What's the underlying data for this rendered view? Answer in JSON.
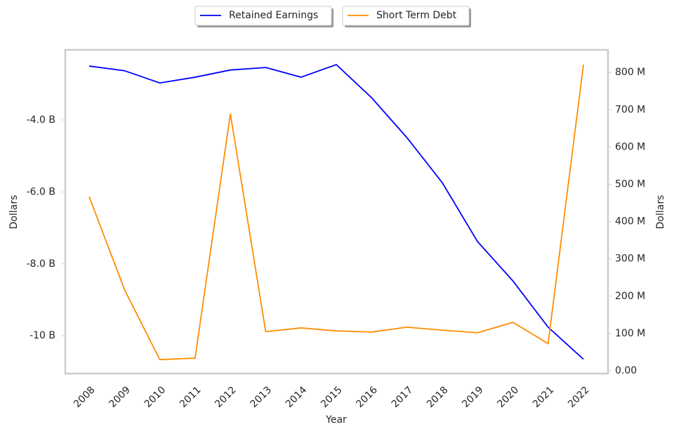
{
  "chart_data": {
    "type": "line",
    "x_label": "Year",
    "y_label": "Dollars",
    "y2_label": "Dollars",
    "categories": [
      "2008",
      "2009",
      "2010",
      "2011",
      "2012",
      "2013",
      "2014",
      "2015",
      "2016",
      "2017",
      "2018",
      "2019",
      "2020",
      "2021",
      "2022"
    ],
    "series": [
      {
        "name": "Retained Earnings",
        "color": "#0000ff",
        "values": [
          -2500000000,
          -2630000000,
          -2970000000,
          -2810000000,
          -2610000000,
          -2540000000,
          -2810000000,
          -2460000000,
          -3380000000,
          -4490000000,
          -5740000000,
          -7380000000,
          -8470000000,
          -9760000000,
          -10650000000
        ]
      },
      {
        "name": "Short Term Debt",
        "color": "#ff8c00",
        "axis": "y2",
        "values": [
          467000000,
          218000000,
          30000000,
          34000000,
          689000000,
          105000000,
          115000000,
          107000000,
          104000000,
          117000000,
          109000000,
          102000000,
          130000000,
          73000000,
          821000000
        ]
      }
    ],
    "ylim": [
      -11050000000,
      -2050000000
    ],
    "yticks": [
      {
        "value": -4000000000,
        "label": "-4.0 B"
      },
      {
        "value": -6000000000,
        "label": "-6.0 B"
      },
      {
        "value": -8000000000,
        "label": "-8.0 B"
      },
      {
        "value": -10000000000,
        "label": "-10 B"
      }
    ],
    "y2lim": [
      -7500000,
      860600000
    ],
    "y2ticks": [
      {
        "value": 0,
        "label": "0.00"
      },
      {
        "value": 100000000,
        "label": "100 M"
      },
      {
        "value": 200000000,
        "label": "200 M"
      },
      {
        "value": 300000000,
        "label": "300 M"
      },
      {
        "value": 400000000,
        "label": "400 M"
      },
      {
        "value": 500000000,
        "label": "500 M"
      },
      {
        "value": 600000000,
        "label": "600 M"
      },
      {
        "value": 700000000,
        "label": "700 M"
      },
      {
        "value": 800000000,
        "label": "800 M"
      }
    ],
    "grid": false,
    "legend": "top"
  }
}
